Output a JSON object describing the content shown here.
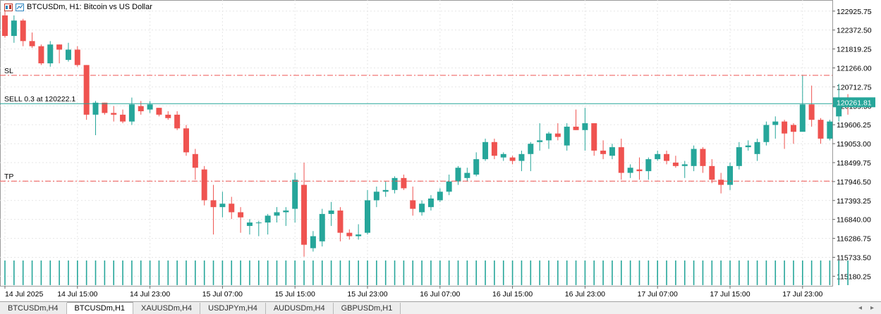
{
  "header": {
    "title": "BTCUSDm, H1:  Bitcoin vs US Dollar",
    "icons": [
      "chart-window-icon",
      "chart-type-icon"
    ]
  },
  "colors": {
    "bull": "#26a69a",
    "bear": "#ef5350",
    "sl_line": "#ef5350",
    "tp_line": "#ef5350",
    "sell_line": "#26a69a",
    "price_tag_bg": "#26a69a",
    "grid": "#e6e6e6",
    "volume": "#26a69a"
  },
  "chart_data": {
    "type": "candlestick",
    "symbol": "BTCUSDm",
    "timeframe": "H1",
    "ylim": [
      114900,
      123250
    ],
    "y_ticks": [
      "122925.75",
      "122372.50",
      "121819.25",
      "121266.00",
      "120712.75",
      "120159.50",
      "119606.25",
      "119053.00",
      "118499.75",
      "117946.50",
      "117393.25",
      "116840.00",
      "116286.75",
      "115733.50",
      "115180.25"
    ],
    "x_labels": [
      {
        "bar": 0,
        "label": "14 Jul 2025"
      },
      {
        "bar": 8,
        "label": "14 Jul 15:00"
      },
      {
        "bar": 16,
        "label": "14 Jul 23:00"
      },
      {
        "bar": 24,
        "label": "15 Jul 07:00"
      },
      {
        "bar": 32,
        "label": "15 Jul 15:00"
      },
      {
        "bar": 40,
        "label": "15 Jul 23:00"
      },
      {
        "bar": 48,
        "label": "16 Jul 07:00"
      },
      {
        "bar": 56,
        "label": "16 Jul 15:00"
      },
      {
        "bar": 64,
        "label": "16 Jul 23:00"
      },
      {
        "bar": 72,
        "label": "17 Jul 07:00"
      },
      {
        "bar": 80,
        "label": "17 Jul 15:00"
      },
      {
        "bar": 88,
        "label": "17 Jul 23:00"
      }
    ],
    "candles": [
      [
        122800,
        122950,
        122150,
        122200
      ],
      [
        122200,
        122800,
        122000,
        122650
      ],
      [
        122650,
        122700,
        121900,
        122050
      ],
      [
        122050,
        122300,
        121850,
        121900
      ],
      [
        121900,
        121950,
        121350,
        121400
      ],
      [
        121400,
        122050,
        121300,
        121950
      ],
      [
        121950,
        121950,
        121400,
        121800
      ],
      [
        121500,
        122000,
        121450,
        121800
      ],
      [
        121800,
        121900,
        121300,
        121350
      ],
      [
        121350,
        121350,
        119750,
        119900
      ],
      [
        119900,
        120300,
        119300,
        120250
      ],
      [
        120250,
        120250,
        119900,
        119950
      ],
      [
        119950,
        120150,
        119700,
        119900
      ],
      [
        119900,
        120050,
        119650,
        119700
      ],
      [
        119700,
        120400,
        119600,
        120200
      ],
      [
        120150,
        120300,
        119900,
        120000
      ],
      [
        120050,
        120300,
        119950,
        120200
      ],
      [
        120100,
        120100,
        119850,
        119900
      ],
      [
        119900,
        120000,
        119750,
        119800
      ],
      [
        119900,
        120000,
        119450,
        119500
      ],
      [
        119500,
        119600,
        118700,
        118800
      ],
      [
        118750,
        118900,
        118000,
        118350
      ],
      [
        118300,
        118400,
        117250,
        117400
      ],
      [
        117400,
        117850,
        116400,
        117200
      ],
      [
        117200,
        117650,
        116900,
        117300
      ],
      [
        117300,
        117500,
        116850,
        117050
      ],
      [
        117050,
        117200,
        116450,
        116900
      ],
      [
        116650,
        116850,
        116400,
        116750
      ],
      [
        116750,
        116800,
        116350,
        116750
      ],
      [
        116750,
        117000,
        116400,
        116950
      ],
      [
        116950,
        117200,
        116750,
        117050
      ],
      [
        117050,
        117200,
        116650,
        117100
      ],
      [
        117150,
        118200,
        116750,
        118000
      ],
      [
        117850,
        118500,
        115750,
        116100
      ],
      [
        116000,
        116500,
        115900,
        116350
      ],
      [
        116200,
        117150,
        116050,
        117000
      ],
      [
        117000,
        117350,
        116650,
        117100
      ],
      [
        117100,
        117200,
        116200,
        116450
      ],
      [
        116450,
        116550,
        116250,
        116350
      ],
      [
        116350,
        116700,
        116250,
        116400
      ],
      [
        116450,
        117700,
        116400,
        117400
      ],
      [
        117400,
        117800,
        117200,
        117650
      ],
      [
        117650,
        117950,
        117500,
        117700
      ],
      [
        117700,
        118100,
        117600,
        118050
      ],
      [
        118050,
        118150,
        117700,
        117750
      ],
      [
        117400,
        117800,
        116950,
        117150
      ],
      [
        117050,
        117400,
        116950,
        117300
      ],
      [
        117200,
        117550,
        117100,
        117450
      ],
      [
        117400,
        117750,
        117350,
        117650
      ],
      [
        117650,
        118150,
        117550,
        117950
      ],
      [
        117950,
        118400,
        117850,
        118350
      ],
      [
        118050,
        118350,
        117950,
        118200
      ],
      [
        118150,
        118800,
        118100,
        118600
      ],
      [
        118600,
        119200,
        118550,
        119100
      ],
      [
        119100,
        119200,
        118600,
        118700
      ],
      [
        118650,
        118800,
        118550,
        118750
      ],
      [
        118650,
        118700,
        118450,
        118550
      ],
      [
        118550,
        118850,
        118250,
        118750
      ],
      [
        118750,
        119100,
        118250,
        119050
      ],
      [
        119100,
        119650,
        118850,
        119150
      ],
      [
        119150,
        119400,
        118900,
        119350
      ],
      [
        119350,
        119650,
        119150,
        119250
      ],
      [
        119000,
        119650,
        118850,
        119550
      ],
      [
        119550,
        120050,
        119450,
        119450
      ],
      [
        119450,
        120100,
        118850,
        119650
      ],
      [
        119650,
        119650,
        118700,
        118850
      ],
      [
        118850,
        119150,
        118600,
        118750
      ],
      [
        118700,
        119050,
        118600,
        118950
      ],
      [
        118950,
        119200,
        118000,
        118200
      ],
      [
        118200,
        118450,
        118050,
        118350
      ],
      [
        118300,
        118650,
        118000,
        118250
      ],
      [
        118250,
        118650,
        118000,
        118600
      ],
      [
        118600,
        118850,
        118550,
        118750
      ],
      [
        118750,
        118850,
        118450,
        118550
      ],
      [
        118500,
        118700,
        118350,
        118400
      ],
      [
        118400,
        118550,
        118050,
        118450
      ],
      [
        118400,
        119000,
        118250,
        118900
      ],
      [
        118900,
        118950,
        118200,
        118400
      ],
      [
        118400,
        118600,
        117900,
        118000
      ],
      [
        118000,
        118200,
        117600,
        117850
      ],
      [
        117850,
        118500,
        117700,
        118400
      ],
      [
        118400,
        119100,
        118300,
        118950
      ],
      [
        118950,
        119150,
        118850,
        119000
      ],
      [
        118750,
        119200,
        118550,
        119100
      ],
      [
        119100,
        119700,
        119000,
        119600
      ],
      [
        119600,
        119850,
        119200,
        119700
      ],
      [
        119700,
        119750,
        118900,
        119350
      ],
      [
        119600,
        119650,
        119050,
        119400
      ],
      [
        119400,
        121050,
        119450,
        120200
      ],
      [
        120200,
        120750,
        119550,
        119750
      ],
      [
        119750,
        119800,
        119050,
        119200
      ],
      [
        119200,
        119750,
        119150,
        119700
      ],
      [
        119850,
        120800,
        119700,
        120350
      ],
      [
        120350,
        120500,
        119900,
        120200
      ]
    ],
    "volumes": [
      0.8,
      0.8,
      0.8,
      0.8,
      0.8,
      0.8,
      0.8,
      0.8,
      0.8,
      0.8,
      0.8,
      0.8,
      0.8,
      0.8,
      0.8,
      0.8,
      0.8,
      0.8,
      0.8,
      0.8,
      0.8,
      0.8,
      0.8,
      0.8,
      0.8,
      0.8,
      0.8,
      0.8,
      0.8,
      0.8,
      0.8,
      0.8,
      0.8,
      0.8,
      0.8,
      0.8,
      0.8,
      0.8,
      0.8,
      0.8,
      0.8,
      0.8,
      0.8,
      0.8,
      0.8,
      0.8,
      0.8,
      0.8,
      0.8,
      0.8,
      0.8,
      0.8,
      0.8,
      0.8,
      0.8,
      0.8,
      0.8,
      0.8,
      0.8,
      0.8,
      0.8,
      0.8,
      0.8,
      0.8,
      0.8,
      0.8,
      0.8,
      0.8,
      0.8,
      0.8,
      0.8,
      0.8,
      0.8,
      0.8,
      0.8,
      0.8,
      0.8,
      0.8,
      0.8,
      0.8,
      0.8,
      0.8,
      0.8,
      0.8,
      0.8,
      0.8,
      0.8,
      0.8,
      0.8,
      0.8,
      0.8,
      0.8,
      0.8,
      0.8
    ],
    "levels": {
      "sl": {
        "label": "SL",
        "price": 121050
      },
      "sell": {
        "label": "SELL 0.3 at 120222.1",
        "price": 120222.1
      },
      "tp": {
        "label": "TP",
        "price": 117960
      }
    },
    "current_price": "120261.81",
    "grid": true
  },
  "tabs": [
    {
      "label": "BTCUSDm,H4",
      "active": false
    },
    {
      "label": "BTCUSDm,H1",
      "active": true
    },
    {
      "label": "XAUUSDm,H4",
      "active": false
    },
    {
      "label": "USDJPYm,H4",
      "active": false
    },
    {
      "label": "AUDUSDm,H4",
      "active": false
    },
    {
      "label": "GBPUSDm,H1",
      "active": false
    }
  ],
  "tab_nav": {
    "left": "◂",
    "right": "▸"
  }
}
